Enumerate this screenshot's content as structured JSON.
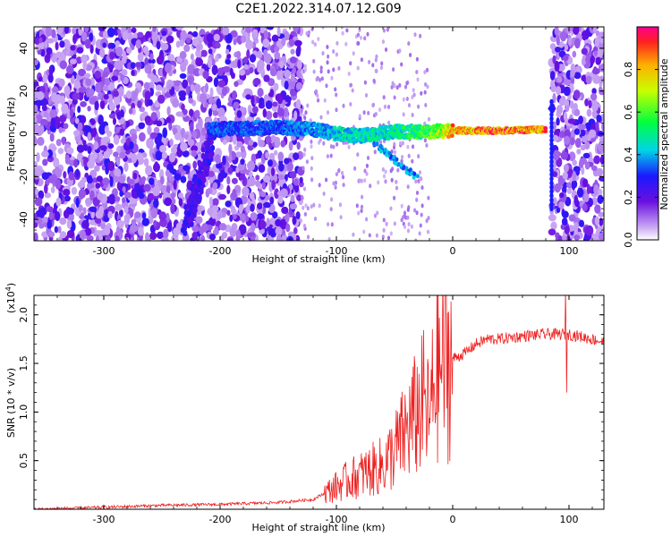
{
  "title": "C2E1.2022.314.07.12.G09",
  "colors": {
    "axis": "#000000",
    "snr_line": "#ee2020",
    "spectrogram_palette": "rainbow (violet to red)"
  },
  "chart_data": [
    {
      "type": "heatmap",
      "xlabel": "Height of straight line (km)",
      "ylabel": "Frequency (Hz)",
      "xlim": [
        -360,
        130
      ],
      "ylim": [
        -50,
        50
      ],
      "xticks": [
        -300,
        -200,
        -100,
        0,
        100
      ],
      "xtick_labels": [
        "-300",
        "-200",
        "-100",
        "0",
        "100"
      ],
      "yticks": [
        -40,
        -20,
        0,
        20,
        40
      ],
      "ytick_labels": [
        "-40",
        "-20",
        "0",
        "20",
        "40"
      ],
      "colorbar": {
        "label": "Normalized spectral amplitude",
        "range": [
          0,
          1
        ],
        "ticks": [
          0.0,
          0.2,
          0.4,
          0.6,
          0.8
        ],
        "tick_labels": [
          "0.0",
          "0.2",
          "0.4",
          "0.6",
          "0.8"
        ]
      },
      "features": {
        "noise_regions_km": [
          [
            -360,
            -130
          ],
          [
            85,
            130
          ]
        ],
        "ridge": [
          {
            "x": -210,
            "y": 2,
            "amp": 0.35
          },
          {
            "x": -150,
            "y": 3,
            "amp": 0.35
          },
          {
            "x": -120,
            "y": 2,
            "amp": 0.4
          },
          {
            "x": -100,
            "y": 0,
            "amp": 0.45
          },
          {
            "x": -80,
            "y": -1,
            "amp": 0.5
          },
          {
            "x": -50,
            "y": 1,
            "amp": 0.5
          },
          {
            "x": -20,
            "y": 1,
            "amp": 0.6
          },
          {
            "x": 0,
            "y": 1.5,
            "amp": 0.85
          },
          {
            "x": 40,
            "y": 1.5,
            "amp": 0.95
          },
          {
            "x": 80,
            "y": 2,
            "amp": 0.9
          }
        ],
        "diagonal_streak": [
          {
            "x": -230,
            "y": -45
          },
          {
            "x": -205,
            "y": 2
          }
        ]
      }
    },
    {
      "type": "line",
      "xlabel": "Height of straight line (km)",
      "ylabel": "SNR (10 * v/v)",
      "multiplier_label": "(x10",
      "multiplier_exp": "4",
      "multiplier_close": ")",
      "xlim": [
        -360,
        130
      ],
      "ylim": [
        0,
        2.2
      ],
      "xticks": [
        -300,
        -200,
        -100,
        0,
        100
      ],
      "xtick_labels": [
        "-300",
        "-200",
        "-100",
        "0",
        "100"
      ],
      "yticks": [
        0.5,
        1.0,
        1.5,
        2.0
      ],
      "ytick_labels": [
        "0.5",
        "1.0",
        "1.5",
        "2.0"
      ],
      "series": [
        {
          "x": [
            -360,
            -300,
            -250,
            -200,
            -150,
            -120,
            -105,
            -90,
            -80,
            -70,
            -60,
            -50,
            -40,
            -30,
            -25,
            -20,
            -15,
            -10,
            0,
            10,
            20,
            30,
            40,
            60,
            80,
            100,
            120,
            130
          ],
          "y": [
            0.0,
            0.02,
            0.04,
            0.05,
            0.07,
            0.1,
            0.2,
            0.3,
            0.35,
            0.4,
            0.45,
            0.6,
            0.8,
            1.0,
            1.1,
            0.9,
            1.4,
            1.5,
            1.55,
            1.6,
            1.7,
            1.75,
            1.75,
            1.78,
            1.8,
            1.8,
            1.75,
            1.72
          ]
        }
      ]
    }
  ]
}
